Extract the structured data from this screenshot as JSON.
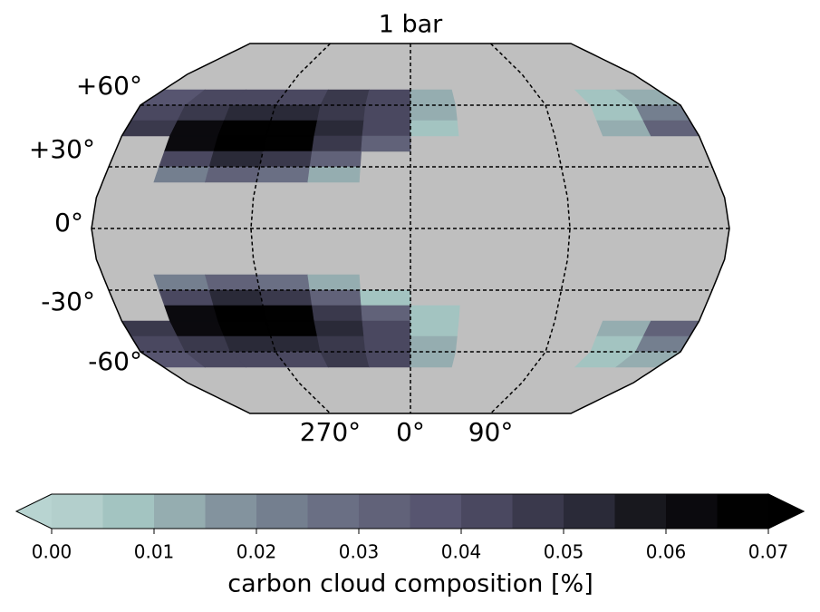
{
  "chart_data": {
    "type": "contour_map",
    "title": "1 bar",
    "colorbar_label": "carbon cloud composition [%]",
    "background": "#bfbfbf",
    "lat_lines": [
      {
        "value": 60,
        "label": "+60°"
      },
      {
        "value": 30,
        "label": "+30°"
      },
      {
        "value": 0,
        "label": "0°"
      },
      {
        "value": -30,
        "label": "-30°"
      },
      {
        "value": -60,
        "label": "-60°"
      }
    ],
    "lon_lines": [
      {
        "value": -90,
        "label": "270°"
      },
      {
        "value": 0,
        "label": "0°"
      },
      {
        "value": 90,
        "label": "90°"
      }
    ],
    "lon_edges": [
      -180,
      -150,
      -120,
      -90,
      -60,
      -30,
      0,
      30,
      60,
      90,
      120,
      150,
      180
    ],
    "rows": [
      {
        "lat": [
          67.5,
          60
        ],
        "values": [
          0.035,
          0.04,
          0.042,
          0.042,
          0.045,
          0.04,
          0.01,
          null,
          null,
          null,
          0.005,
          0.01
        ]
      },
      {
        "lat": [
          60,
          52.5
        ],
        "values": [
          0.04,
          0.045,
          0.05,
          0.05,
          0.048,
          0.042,
          0.012,
          null,
          null,
          null,
          0.008,
          0.02
        ]
      },
      {
        "lat": [
          52.5,
          45
        ],
        "values": [
          0.045,
          0.06,
          0.068,
          0.065,
          0.05,
          0.04,
          0.008,
          null,
          null,
          null,
          0.01,
          0.03
        ]
      },
      {
        "lat": [
          45,
          37.5
        ],
        "values": [
          null,
          0.06,
          0.07,
          0.068,
          0.045,
          0.03,
          null,
          null,
          null,
          null,
          null,
          null
        ]
      },
      {
        "lat": [
          37.5,
          30
        ],
        "values": [
          null,
          0.04,
          0.05,
          0.045,
          0.03,
          null,
          null,
          null,
          null,
          null,
          null,
          null
        ]
      },
      {
        "lat": [
          30,
          22.5
        ],
        "values": [
          null,
          0.02,
          0.03,
          0.025,
          0.01,
          null,
          null,
          null,
          null,
          null,
          null,
          null
        ]
      },
      {
        "lat": [
          -22.5,
          -30
        ],
        "values": [
          null,
          0.02,
          0.03,
          0.025,
          0.012,
          null,
          null,
          null,
          null,
          null,
          null,
          null
        ]
      },
      {
        "lat": [
          -30,
          -37.5
        ],
        "values": [
          null,
          0.04,
          0.05,
          0.045,
          0.03,
          0.005,
          null,
          null,
          null,
          null,
          null,
          null
        ]
      },
      {
        "lat": [
          -37.5,
          -45
        ],
        "values": [
          null,
          0.06,
          0.07,
          0.068,
          0.045,
          0.03,
          0.005,
          null,
          null,
          null,
          null,
          null
        ]
      },
      {
        "lat": [
          -45,
          -52.5
        ],
        "values": [
          0.045,
          0.06,
          0.068,
          0.065,
          0.05,
          0.04,
          0.008,
          null,
          null,
          null,
          0.01,
          0.03
        ]
      },
      {
        "lat": [
          -52.5,
          -60
        ],
        "values": [
          0.04,
          0.045,
          0.05,
          0.05,
          0.048,
          0.042,
          0.012,
          null,
          null,
          null,
          0.008,
          0.02
        ]
      },
      {
        "lat": [
          -60,
          -67.5
        ],
        "values": [
          0.035,
          0.04,
          0.042,
          0.042,
          0.045,
          0.04,
          0.01,
          null,
          null,
          null,
          0.005,
          0.01
        ]
      }
    ],
    "levels": [
      0,
      0.005,
      0.01,
      0.015,
      0.02,
      0.025,
      0.03,
      0.035,
      0.04,
      0.045,
      0.05,
      0.055,
      0.06,
      0.065,
      0.07
    ],
    "colors": [
      "#b3cfcc",
      "#a3c4c1",
      "#95adb0",
      "#83939e",
      "#747f8f",
      "#6a6f84",
      "#616279",
      "#575570",
      "#4a4860",
      "#3a394c",
      "#2a2a38",
      "#18181e",
      "#0b0a0e",
      "#010101"
    ],
    "under_color": "#b8d4d1",
    "over_color": "#000000",
    "cticks": [
      {
        "value": 0,
        "label": "0.00"
      },
      {
        "value": 0.01,
        "label": "0.01"
      },
      {
        "value": 0.02,
        "label": "0.02"
      },
      {
        "value": 0.03,
        "label": "0.03"
      },
      {
        "value": 0.04,
        "label": "0.04"
      },
      {
        "value": 0.05,
        "label": "0.05"
      },
      {
        "value": 0.06,
        "label": "0.06"
      },
      {
        "value": 0.07,
        "label": "0.07"
      }
    ]
  }
}
